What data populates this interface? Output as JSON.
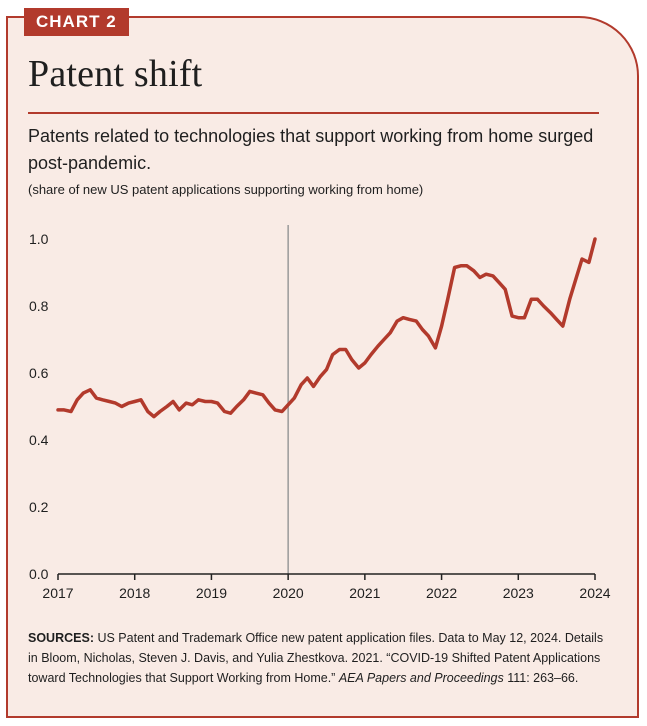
{
  "header": {
    "tag": "CHART 2",
    "title": "Patent shift",
    "subtitle": "Patents related to technologies that support working from home surged post-pandemic.",
    "units": "(share of new US patent applications supporting working from home)"
  },
  "sources": {
    "label": "SOURCES:",
    "text_1": "US Patent and Trademark Office new patent application files. Data to May 12, 2024. Details in Bloom, Nicholas, Steven J. Davis, and Yulia Zhestkova. 2021. “COVID-19 Shifted Patent Applications toward Technologies that Support Working from Home.” ",
    "journal": "AEA Papers and Proceedings",
    "text_2": " 111: 263–66."
  },
  "colors": {
    "line": "#b23a2c",
    "marker": "#9a9a9a",
    "axis": "#222222",
    "background": "#f9ebe5"
  },
  "chart_data": {
    "type": "line",
    "title": "Patent shift",
    "ylim": [
      0.0,
      1.0
    ],
    "xlim": [
      2017,
      2024
    ],
    "y_ticks": [
      "0.0",
      "0.2",
      "0.4",
      "0.6",
      "0.8",
      "1.0"
    ],
    "x_ticks": [
      "2017",
      "2018",
      "2019",
      "2020",
      "2021",
      "2022",
      "2023",
      "2024"
    ],
    "grid": false,
    "reference_line_x": 2020,
    "series": [
      {
        "x": [
          2017.0,
          2017.08,
          2017.17,
          2017.25,
          2017.33,
          2017.42,
          2017.5,
          2017.58,
          2017.67,
          2017.75,
          2017.83,
          2017.92,
          2018.0,
          2018.08,
          2018.17,
          2018.25,
          2018.33,
          2018.42,
          2018.5,
          2018.58,
          2018.67,
          2018.75,
          2018.83,
          2018.92,
          2019.0,
          2019.08,
          2019.17,
          2019.25,
          2019.33,
          2019.42,
          2019.5,
          2019.58,
          2019.67,
          2019.75,
          2019.83,
          2019.92,
          2020.0,
          2020.08,
          2020.17,
          2020.25,
          2020.33,
          2020.42,
          2020.5,
          2020.58,
          2020.67,
          2020.75,
          2020.83,
          2020.92,
          2021.0,
          2021.08,
          2021.17,
          2021.25,
          2021.33,
          2021.42,
          2021.5,
          2021.58,
          2021.67,
          2021.75,
          2021.83,
          2021.92,
          2022.0,
          2022.08,
          2022.17,
          2022.25,
          2022.33,
          2022.42,
          2022.5,
          2022.58,
          2022.67,
          2022.75,
          2022.83,
          2022.92,
          2023.0,
          2023.08,
          2023.17,
          2023.25,
          2023.33,
          2023.42,
          2023.5,
          2023.58,
          2023.67,
          2023.75,
          2023.83,
          2023.92,
          2024.0
        ],
        "values": [
          0.49,
          0.49,
          0.485,
          0.52,
          0.54,
          0.55,
          0.525,
          0.52,
          0.515,
          0.51,
          0.5,
          0.51,
          0.515,
          0.52,
          0.485,
          0.47,
          0.485,
          0.5,
          0.515,
          0.49,
          0.51,
          0.505,
          0.52,
          0.515,
          0.515,
          0.51,
          0.485,
          0.48,
          0.5,
          0.52,
          0.545,
          0.54,
          0.535,
          0.51,
          0.49,
          0.485,
          0.505,
          0.525,
          0.565,
          0.585,
          0.56,
          0.59,
          0.61,
          0.655,
          0.67,
          0.67,
          0.64,
          0.615,
          0.63,
          0.655,
          0.68,
          0.7,
          0.72,
          0.755,
          0.765,
          0.76,
          0.755,
          0.73,
          0.71,
          0.675,
          0.74,
          0.82,
          0.915,
          0.92,
          0.92,
          0.905,
          0.885,
          0.895,
          0.89,
          0.87,
          0.85,
          0.77,
          0.765,
          0.765,
          0.82,
          0.82,
          0.8,
          0.78,
          0.76,
          0.74,
          0.82,
          0.88,
          0.94,
          0.93,
          1.0
        ]
      }
    ]
  }
}
